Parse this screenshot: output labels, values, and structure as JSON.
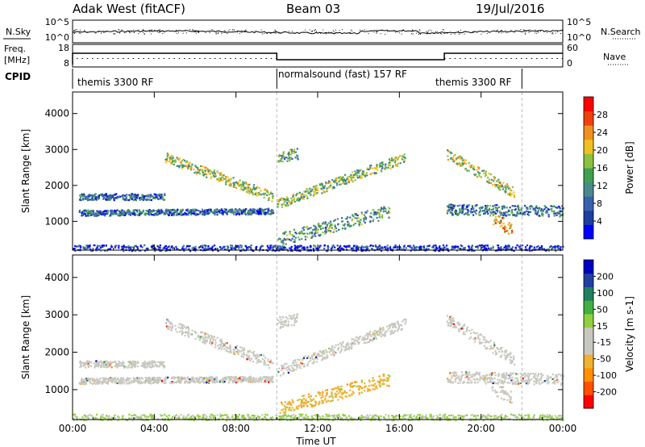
{
  "header": {
    "radar": "Adak West (fitACF)",
    "beam": "Beam 03",
    "date": "19/Jul/2016"
  },
  "strips": {
    "nsky_label": "N.Sky",
    "nsearch_label": "N.Search",
    "noise_ticks": [
      "10^5",
      "10^0"
    ],
    "freq_label_1": "Freq.",
    "freq_label_2": "[MHz]",
    "freq_ticks": [
      "18",
      "8"
    ],
    "nave_ticks": [
      "60",
      "0"
    ],
    "nave_label": "Nave",
    "cpid_label": "CPID",
    "cpid_segments": [
      {
        "label": "themis 3300 RF",
        "start_hour": 0,
        "end_hour": 10
      },
      {
        "label": "normalsound (fast) 157 RF",
        "start_hour": 10,
        "end_hour": 22
      },
      {
        "label": "themis 3300 RF",
        "start_hour": 18.2,
        "end_hour": 22
      }
    ]
  },
  "chart_data": [
    {
      "type": "heatmap",
      "name": "Power",
      "ylabel": "Slant Range [km]",
      "ylim": [
        200,
        4600
      ],
      "yticks": [
        1000,
        2000,
        3000,
        4000
      ],
      "colorbar": {
        "label": "Power [dB]",
        "ticks": [
          "28",
          "24",
          "20",
          "16",
          "12",
          "8",
          "4"
        ],
        "colors": [
          "#0000ff",
          "#1e3ea0",
          "#3a60b0",
          "#4a8a8a",
          "#3fa050",
          "#8cc040",
          "#f0c020",
          "#f09020",
          "#f04010",
          "#ff0000"
        ]
      }
    },
    {
      "type": "heatmap",
      "name": "Velocity",
      "ylabel": "Slant Range [km]",
      "xlabel": "Time UT",
      "xlim": [
        0,
        24
      ],
      "xticks": [
        "00:00",
        "04:00",
        "08:00",
        "12:00",
        "16:00",
        "20:00",
        "00:00"
      ],
      "ylim": [
        200,
        4600
      ],
      "yticks": [
        1000,
        2000,
        3000,
        4000
      ],
      "colorbar": {
        "label": "Velocity [m s-1]",
        "ticks": [
          "200",
          "100",
          "50",
          "15",
          "-15",
          "-50",
          "-100",
          "-200"
        ],
        "colors": [
          "#ff0000",
          "#ff5000",
          "#ff9000",
          "#f0b030",
          "#c8c8c0",
          "#c8c8c0",
          "#90d040",
          "#40b040",
          "#208060",
          "#2040a0",
          "#0000c0"
        ]
      }
    }
  ],
  "annotations": {
    "mode_change_hours": [
      10,
      22
    ]
  }
}
